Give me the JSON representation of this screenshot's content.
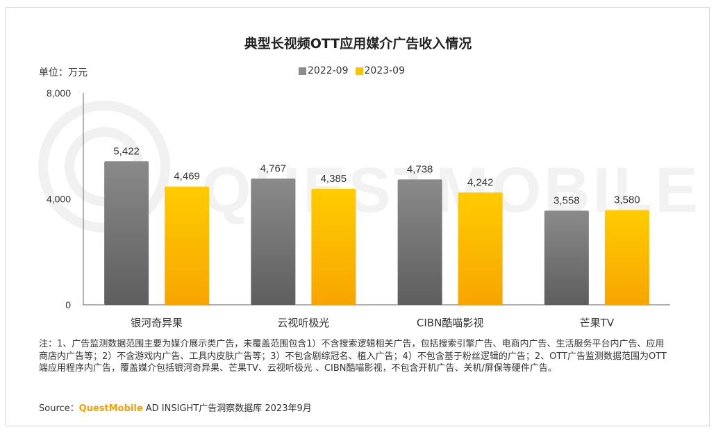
{
  "title": "典型长视频OTT应用媒介广告收入情况",
  "unit_label": "单位：万元",
  "chart_data": {
    "type": "bar",
    "title": "典型长视频OTT应用媒介广告收入情况",
    "ylabel": "单位：万元",
    "xlabel": "",
    "categories": [
      "银河奇异果",
      "云视听极光",
      "CIBN酷喵影视",
      "芒果TV"
    ],
    "series": [
      {
        "name": "2022-09",
        "values": [
          5422,
          4767,
          4738,
          3558
        ],
        "color": "#8c8c8c"
      },
      {
        "name": "2023-09",
        "values": [
          4469,
          4385,
          4242,
          3580
        ],
        "color": "#fdc300"
      }
    ],
    "value_labels": [
      [
        "5,422",
        "4,767",
        "4,738",
        "3,558"
      ],
      [
        "4,469",
        "4,385",
        "4,242",
        "3,580"
      ]
    ],
    "ylim": [
      0,
      8000
    ],
    "yticks": [
      0,
      4000,
      8000
    ],
    "ytick_labels": [
      "0",
      "4,000",
      "8,000"
    ],
    "grid": false,
    "legend_position": "top"
  },
  "note": "注：1、广告监测数据范围主要为媒介展示类广告，未覆盖范围包含1）不含搜索逻辑相关广告，包括搜索引擎广告、电商内广告、生活服务平台内广告、应用商店内广告等；2）不含游戏内广告、工具内皮肤广告等；3）不包含剧综冠名、植入广告；4）不包含基于粉丝逻辑的广告；2、OTT广告监测数据范围为OTT端应用程序内广告，覆盖媒介包括银河奇异果、芒果TV、云视听极光 、CIBN酷喵影视，不包含开机广告、关机/屏保等硬件广告。",
  "source": {
    "prefix": "Source：",
    "brand": "QuestMobile",
    "suffix": " AD INSIGHT广告洞察数据库 2023年9月"
  },
  "watermark_text": "QUESTMOBILE"
}
